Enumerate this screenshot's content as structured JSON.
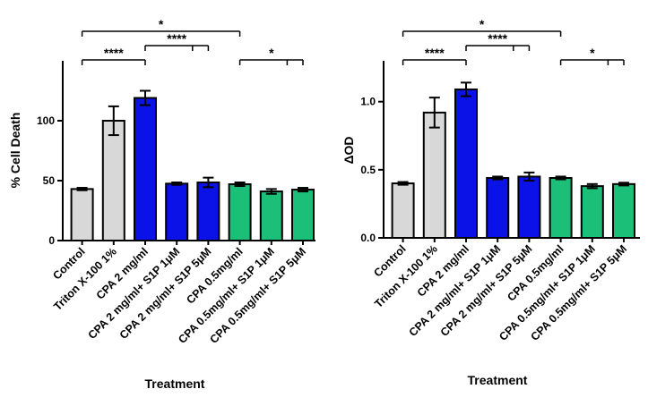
{
  "colors": {
    "control": "#d8d8d8",
    "triton": "#d8d8d8",
    "blue": "#0a12e8",
    "green": "#1bbf77",
    "axis": "#000000"
  },
  "chart_data": [
    {
      "type": "bar",
      "title": "",
      "xlabel": "Treatment",
      "ylabel": "% Cell Death",
      "ylim": [
        0,
        150
      ],
      "yticks": [
        0,
        50,
        100
      ],
      "ytick_labels": [
        "0",
        "50",
        "100"
      ],
      "categories": [
        "Control",
        "Triton X-100 1%",
        "CPA 2 mg/ml",
        "CPA 2 mg/ml+ S1P 1μM",
        "CPA 2 mg/ml+ S1P 5μM",
        "CPA 0.5mg/ml",
        "CPA 0.5mg/ml+ S1P 1μM",
        "CPA 0.5mg/ml+ S1P 5μM"
      ],
      "values": [
        43,
        100,
        119,
        47.5,
        48.5,
        47,
        41,
        42.5
      ],
      "errors": [
        1,
        12,
        6,
        1,
        4,
        1.5,
        2,
        1.5
      ],
      "bar_colors": [
        "control",
        "triton",
        "blue",
        "blue",
        "blue",
        "green",
        "green",
        "green"
      ],
      "annotations": [
        {
          "label": "*",
          "from": 0,
          "to": 5,
          "level": 2
        },
        {
          "label": "****",
          "from": 0,
          "to": 2,
          "level": 0
        },
        {
          "label": "****",
          "from": 2,
          "to": [
            3,
            4
          ],
          "level": 1
        },
        {
          "label": "*",
          "from": 5,
          "to": [
            6,
            7
          ],
          "level": 0
        }
      ]
    },
    {
      "type": "bar",
      "title": "",
      "xlabel": "Treatment",
      "ylabel": "ΔOD",
      "ylim": [
        0,
        1.3
      ],
      "yticks": [
        0,
        0.5,
        1.0
      ],
      "ytick_labels": [
        "0.0",
        "0.5",
        "1.0"
      ],
      "categories": [
        "Control",
        "Triton X-100 1%",
        "CPA 2 mg/ml",
        "CPA 2 mg/ml+ S1P 1μM",
        "CPA 2 mg/ml+ S1P 5μM",
        "CPA 0.5mg/ml",
        "CPA 0.5mg/ml+ S1P 1μM",
        "CPA 0.5mg/ml+ S1P 5μM"
      ],
      "values": [
        0.4,
        0.92,
        1.09,
        0.44,
        0.45,
        0.44,
        0.38,
        0.395
      ],
      "errors": [
        0.01,
        0.11,
        0.05,
        0.01,
        0.03,
        0.01,
        0.015,
        0.01
      ],
      "bar_colors": [
        "control",
        "triton",
        "blue",
        "blue",
        "blue",
        "green",
        "green",
        "green"
      ],
      "annotations": [
        {
          "label": "*",
          "from": 0,
          "to": 5,
          "level": 2
        },
        {
          "label": "****",
          "from": 0,
          "to": 2,
          "level": 0
        },
        {
          "label": "****",
          "from": 2,
          "to": [
            3,
            4
          ],
          "level": 1
        },
        {
          "label": "*",
          "from": 5,
          "to": [
            6,
            7
          ],
          "level": 0
        }
      ]
    }
  ]
}
